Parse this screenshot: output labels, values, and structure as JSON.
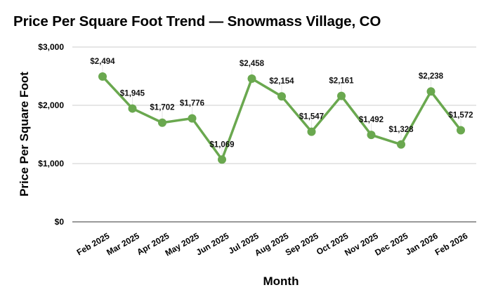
{
  "chart_data": {
    "type": "line",
    "title": "Price Per Square Foot Trend — Snowmass Village, CO",
    "xlabel": "Month",
    "ylabel": "Price Per Square Foot",
    "categories": [
      "Feb 2025",
      "Mar 2025",
      "Apr 2025",
      "May 2025",
      "Jun 2025",
      "Jul 2025",
      "Aug 2025",
      "Sep 2025",
      "Oct 2025",
      "Nov 2025",
      "Dec 2025",
      "Jan 2026",
      "Feb 2026"
    ],
    "series": [
      {
        "name": "Price Per Square Foot",
        "color": "#6aa84f",
        "values": [
          2494,
          1945,
          1702,
          1776,
          1069,
          2458,
          2154,
          1547,
          2161,
          1492,
          1328,
          2238,
          1572
        ],
        "labels": [
          "$2,494",
          "$1,945",
          "$1,702",
          "$1,776",
          "$1,069",
          "$2,458",
          "$2,154",
          "$1,547",
          "$2,161",
          "$1,492",
          "$1,328",
          "$2,238",
          "$1,572"
        ]
      }
    ],
    "ylim": [
      0,
      3000
    ],
    "yticks": [
      0,
      1000,
      2000,
      3000
    ],
    "ytick_labels": [
      "$0",
      "$1,000",
      "$2,000",
      "$3,000"
    ],
    "grid": true,
    "legend": "none"
  }
}
